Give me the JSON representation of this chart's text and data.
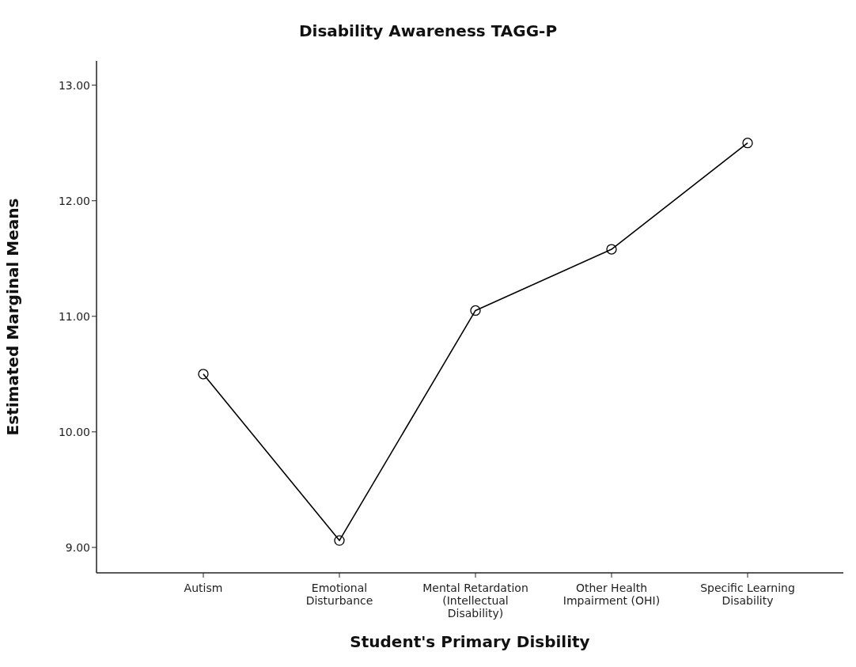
{
  "chart_data": {
    "type": "line",
    "title": "Disability Awareness TAGG-P",
    "xlabel": "Student's Primary Disbility",
    "ylabel": "Estimated Marginal Means",
    "categories": [
      "Autism",
      "Emotional Disturbance",
      "Mental Retardation (Intellectual Disability)",
      "Other Health Impairment (OHI)",
      "Specific Learning Disability"
    ],
    "series": [
      {
        "color": "#000000",
        "values": [
          10.5,
          9.06,
          11.05,
          11.58,
          12.5
        ]
      }
    ],
    "ylim": [
      8.78,
      13.21
    ],
    "yticks": [
      {
        "value": 9,
        "label": "9.00"
      },
      {
        "value": 10,
        "label": "10.00"
      },
      {
        "value": 11,
        "label": "11.00"
      },
      {
        "value": 12,
        "label": "12.00"
      },
      {
        "value": 13,
        "label": "13.00"
      }
    ],
    "grid": false,
    "legend": false,
    "marker": "circle",
    "line_style": "solid"
  }
}
